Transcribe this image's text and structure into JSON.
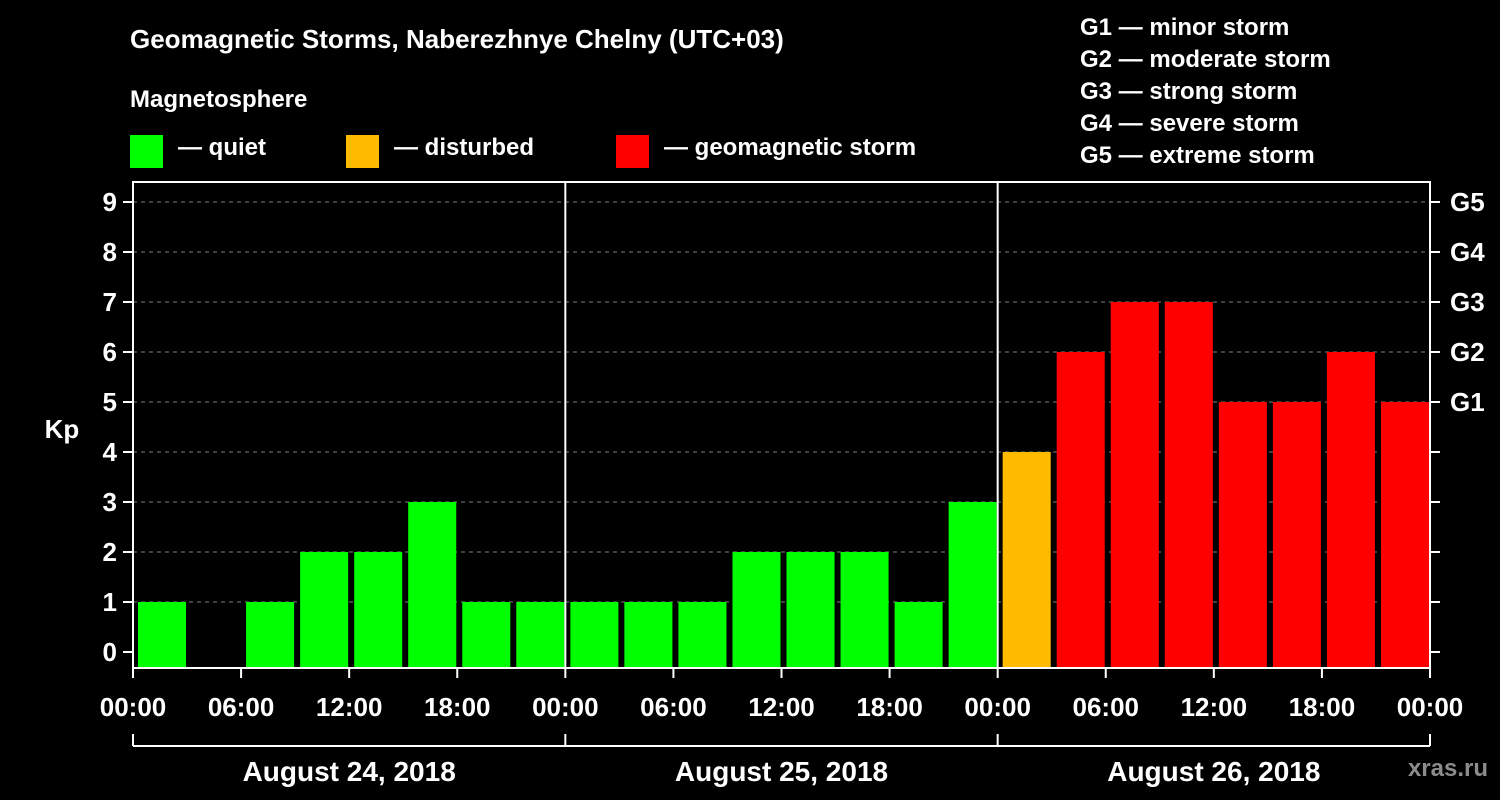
{
  "chart_data": {
    "type": "bar",
    "title": "Geomagnetic Storms, Naberezhnye Chelny (UTC+03)",
    "ylabel": "Kp",
    "ylim": [
      0,
      9
    ],
    "yticks": [
      "0",
      "1",
      "2",
      "3",
      "4",
      "5",
      "6",
      "7",
      "8",
      "9"
    ],
    "right_ticks": [
      {
        "value": 5,
        "label": "G1"
      },
      {
        "value": 6,
        "label": "G2"
      },
      {
        "value": 7,
        "label": "G3"
      },
      {
        "value": 8,
        "label": "G4"
      },
      {
        "value": 9,
        "label": "G5"
      }
    ],
    "xticks": [
      "00:00",
      "06:00",
      "12:00",
      "18:00",
      "00:00",
      "06:00",
      "12:00",
      "18:00",
      "00:00",
      "06:00",
      "12:00",
      "18:00",
      "00:00"
    ],
    "days": [
      "August 24, 2018",
      "August 25, 2018",
      "August 26, 2018"
    ],
    "values": [
      1,
      0,
      1,
      2,
      2,
      3,
      1,
      1,
      1,
      1,
      1,
      2,
      2,
      2,
      1,
      3,
      4,
      6,
      7,
      7,
      5,
      5,
      6,
      5
    ],
    "categories_per_day": 8,
    "hours_per_bar": 3,
    "grid": true
  },
  "legend_section": {
    "heading": "Magnetosphere",
    "items": [
      {
        "label": "— quiet",
        "color": "#00ff00"
      },
      {
        "label": "— disturbed",
        "color": "#ffbb00"
      },
      {
        "label": "— geomagnetic storm",
        "color": "#ff0000"
      }
    ]
  },
  "storm_scale": [
    "G1 — minor storm",
    "G2 — moderate storm",
    "G3 — strong storm",
    "G4 — severe storm",
    "G5 — extreme storm"
  ],
  "colors": {
    "quiet": "#00ff00",
    "disturbed": "#ffbb00",
    "storm": "#ff0000",
    "grid": "#808080"
  },
  "site": "xras.ru"
}
